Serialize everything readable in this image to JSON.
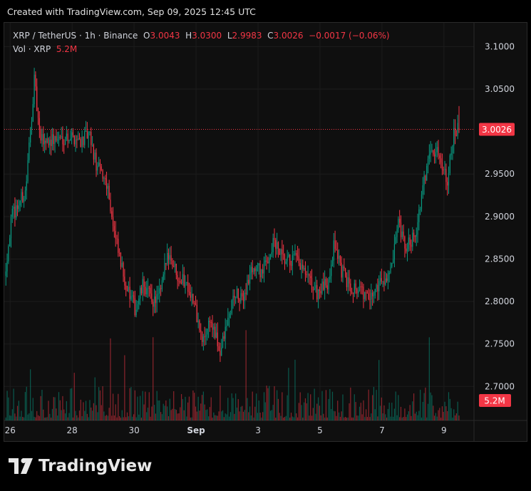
{
  "header": "Created with TradingView.com, Sep 09, 2025 12:45 UTC",
  "legend": {
    "symbol": "XRP / TetherUS · 1h · Binance",
    "o_label": "O",
    "o": "3.0043",
    "h_label": "H",
    "h": "3.0300",
    "l_label": "L",
    "l": "2.9983",
    "c_label": "C",
    "c": "3.0026",
    "change": "−0.0017 (−0.06%)",
    "vol_label": "Vol · XRP",
    "vol": "5.2M"
  },
  "logo": "TradingView",
  "colors": {
    "up": "#089981",
    "down": "#f23645",
    "grid": "#1c1c1c"
  },
  "chart_data": {
    "type": "candlestick",
    "title": "XRP / TetherUS · 1h · Binance",
    "y_ticks": [
      "3.1000",
      "3.0500",
      "2.9500",
      "2.9000",
      "2.8500",
      "2.8000",
      "2.7500",
      "2.7000"
    ],
    "y_tick_values": [
      3.1,
      3.05,
      2.95,
      2.9,
      2.85,
      2.8,
      2.75,
      2.7
    ],
    "ylim": [
      2.66,
      3.128
    ],
    "x_ticks": [
      "26",
      "28",
      "30",
      "Sep",
      "3",
      "5",
      "7",
      "9"
    ],
    "x_tick_days": [
      0,
      2,
      4,
      6,
      8,
      10,
      12,
      14
    ],
    "xlim_days": [
      -0.19,
      14.97
    ],
    "last_price": "3.0026",
    "last_price_value": 3.0026,
    "last_volume": "5.2M",
    "close_path_days": [
      -0.18,
      0.05,
      0.5,
      0.78,
      0.96,
      1.4,
      1.88,
      2.32,
      2.55,
      2.78,
      3.13,
      3.36,
      3.59,
      3.82,
      4.05,
      4.29,
      4.63,
      4.86,
      5.09,
      5.43,
      5.75,
      5.98,
      6.21,
      6.44,
      6.78,
      7.01,
      7.24,
      7.47,
      7.82,
      8.16,
      8.51,
      8.85,
      9.2,
      9.54,
      9.89,
      10.23,
      10.47,
      10.7,
      10.93,
      11.27,
      11.62,
      11.85,
      12.3,
      12.53,
      12.76,
      13.11,
      13.34,
      13.57,
      13.87,
      14.11,
      14.34,
      14.5
    ],
    "close_path_prices": [
      2.83,
      2.9,
      2.93,
      3.06,
      2.99,
      2.99,
      2.995,
      2.99,
      2.995,
      2.96,
      2.94,
      2.88,
      2.84,
      2.81,
      2.79,
      2.82,
      2.8,
      2.81,
      2.86,
      2.83,
      2.82,
      2.79,
      2.75,
      2.78,
      2.74,
      2.775,
      2.81,
      2.8,
      2.84,
      2.835,
      2.87,
      2.845,
      2.85,
      2.83,
      2.81,
      2.82,
      2.87,
      2.835,
      2.82,
      2.815,
      2.8,
      2.82,
      2.835,
      2.89,
      2.86,
      2.885,
      2.935,
      2.985,
      2.97,
      2.945,
      3.0,
      3.0026
    ]
  }
}
